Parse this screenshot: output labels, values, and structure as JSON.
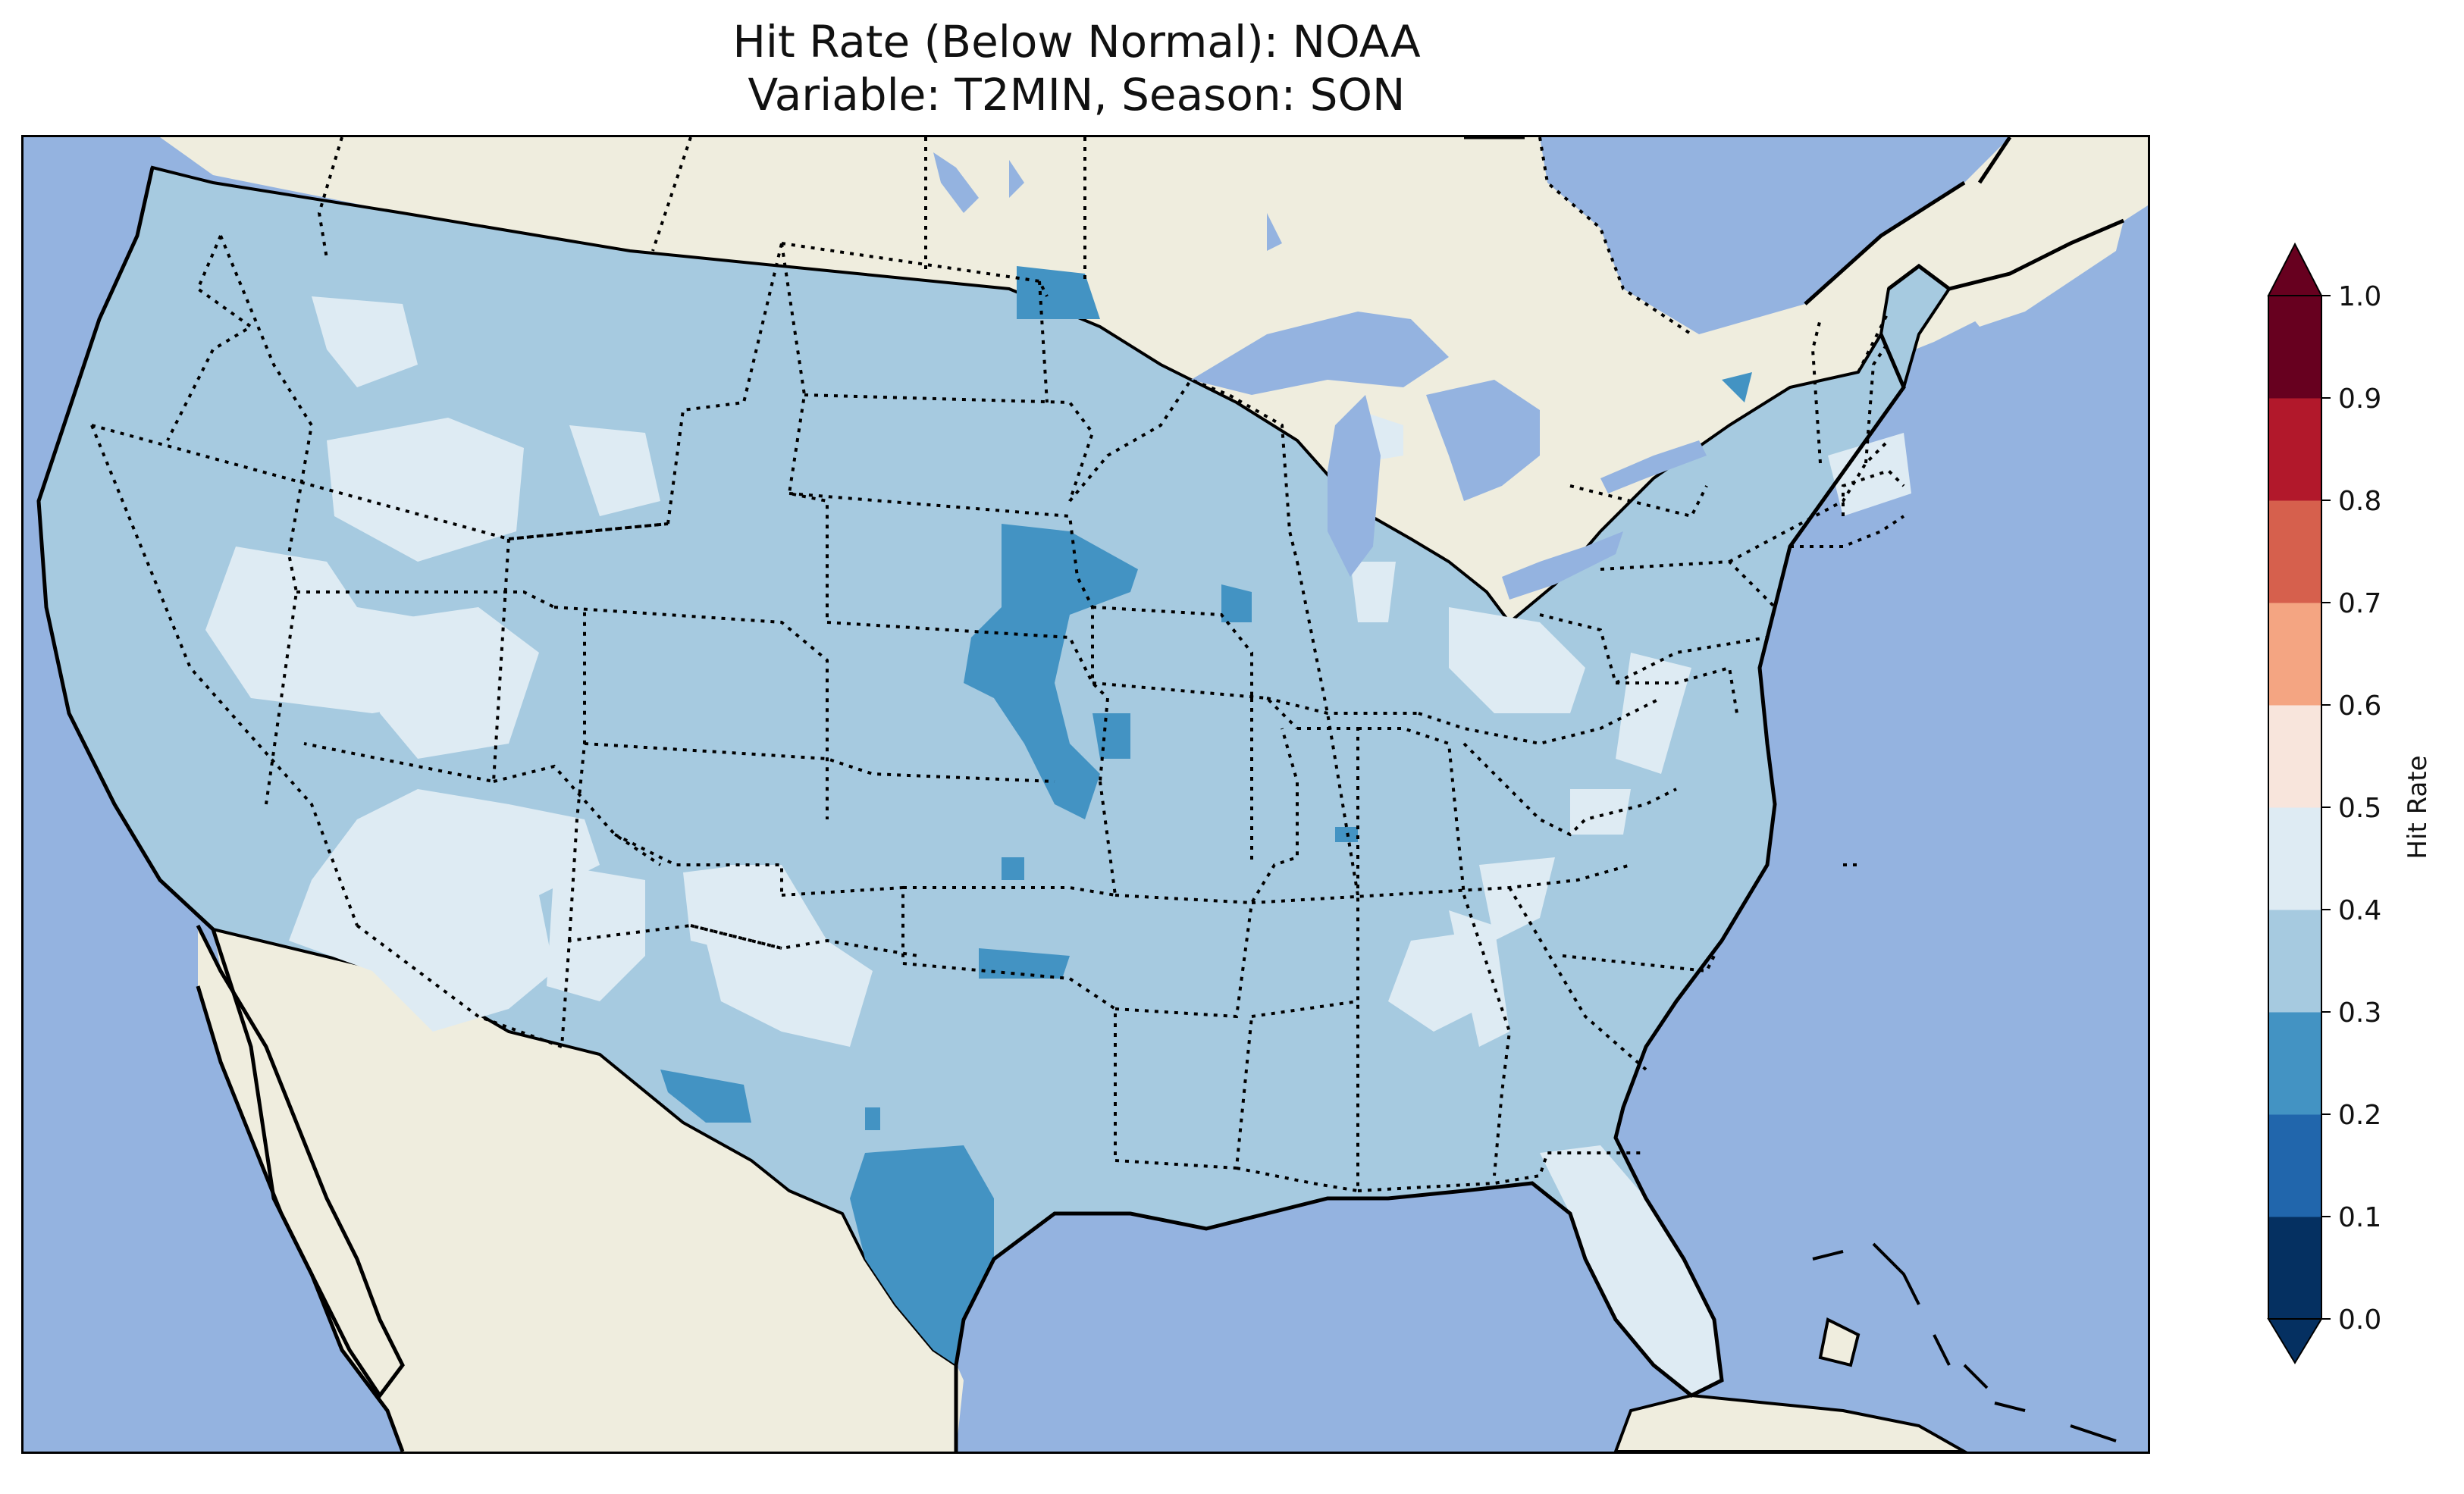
{
  "title_line1": "Hit Rate (Below Normal): NOAA",
  "title_line2": "Variable: T2MIN, Season: SON",
  "colorbar": {
    "label": "Hit Rate",
    "ticks": [
      "0.0",
      "0.1",
      "0.2",
      "0.3",
      "0.4",
      "0.5",
      "0.6",
      "0.7",
      "0.8",
      "0.9",
      "1.0"
    ],
    "levels": [
      {
        "range": [
          0.0,
          0.1
        ],
        "color": "#053061"
      },
      {
        "range": [
          0.1,
          0.2
        ],
        "color": "#2166ac"
      },
      {
        "range": [
          0.2,
          0.3
        ],
        "color": "#4393c3"
      },
      {
        "range": [
          0.3,
          0.4
        ],
        "color": "#a6cae0"
      },
      {
        "range": [
          0.4,
          0.5
        ],
        "color": "#deebf3"
      },
      {
        "range": [
          0.5,
          0.6
        ],
        "color": "#f8e5dc"
      },
      {
        "range": [
          0.6,
          0.7
        ],
        "color": "#f4a582"
      },
      {
        "range": [
          0.7,
          0.8
        ],
        "color": "#d6604d"
      },
      {
        "range": [
          0.8,
          0.9
        ],
        "color": "#b2182b"
      },
      {
        "range": [
          0.9,
          1.0
        ],
        "color": "#67001f"
      }
    ],
    "extend": "both"
  },
  "map": {
    "ocean_color": "#94b3e0",
    "land_color": "#efedde",
    "dominant_value_range": [
      0.3,
      0.4
    ],
    "region": "Contiguous United States"
  }
}
